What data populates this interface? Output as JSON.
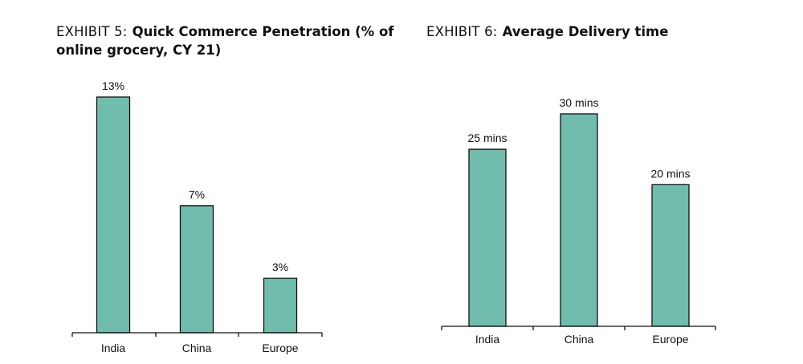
{
  "chart_data": [
    {
      "type": "bar",
      "exhibit_label": "EXHIBIT 5:",
      "title": "Quick Commerce Penetration (% of online grocery, CY 21)",
      "categories": [
        "India",
        "China",
        "Europe"
      ],
      "values": [
        13,
        7,
        3
      ],
      "value_labels": [
        "13%",
        "7%",
        "3%"
      ],
      "ylim": [
        0,
        13
      ],
      "xlabel": "",
      "ylabel": "",
      "grid": false,
      "bar_color": "#70bcad"
    },
    {
      "type": "bar",
      "exhibit_label": "EXHIBIT 6:",
      "title": "Average Delivery time",
      "categories": [
        "India",
        "China",
        "Europe"
      ],
      "values": [
        25,
        30,
        20
      ],
      "value_labels": [
        "25 mins",
        "30 mins",
        "20 mins"
      ],
      "ylim": [
        0,
        30
      ],
      "xlabel": "",
      "ylabel": "",
      "grid": false,
      "bar_color": "#70bcad"
    }
  ]
}
